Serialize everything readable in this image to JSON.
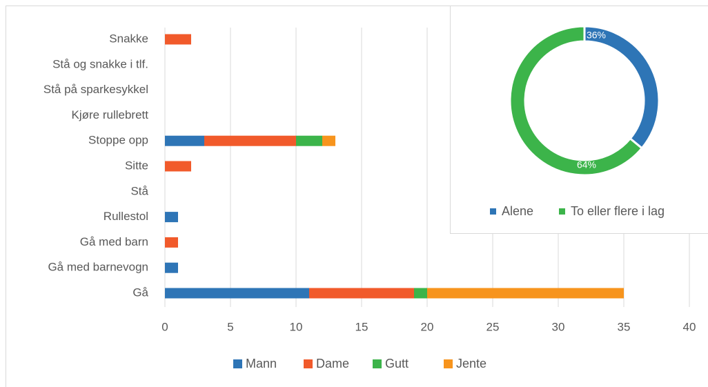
{
  "chart_data": [
    {
      "type": "bar",
      "orientation": "horizontal",
      "stacked": true,
      "categories": [
        "Snakke",
        "Stå og snakke i tlf.",
        "Stå på sparkesykkel",
        "Kjøre rullebrett",
        "Stoppe opp",
        "Sitte",
        "Stå",
        "Rullestol",
        "Gå med barn",
        "Gå med barnevogn",
        "Gå"
      ],
      "series": [
        {
          "name": "Mann",
          "color": "#2e75b6",
          "values": [
            0,
            0,
            0,
            0,
            3,
            0,
            0,
            1,
            0,
            1,
            11
          ]
        },
        {
          "name": "Dame",
          "color": "#f15a2b",
          "values": [
            2,
            0,
            0,
            0,
            7,
            2,
            0,
            0,
            1,
            0,
            8
          ]
        },
        {
          "name": "Gutt",
          "color": "#3cb44a",
          "values": [
            0,
            0,
            0,
            0,
            2,
            0,
            0,
            0,
            0,
            0,
            1
          ]
        },
        {
          "name": "Jente",
          "color": "#f7941d",
          "values": [
            0,
            0,
            0,
            0,
            1,
            0,
            0,
            0,
            0,
            0,
            15
          ]
        }
      ],
      "xlim": [
        0,
        40
      ],
      "xticks": [
        0,
        5,
        10,
        15,
        20,
        25,
        30,
        35,
        40
      ],
      "grid": true,
      "legend": "bottom"
    },
    {
      "type": "donut",
      "categories": [
        "Alene",
        "To eller flere i lag"
      ],
      "values": [
        36,
        64
      ],
      "value_labels": [
        "36%",
        "64%"
      ],
      "colors": [
        "#2e75b6",
        "#3cb44a"
      ],
      "legend": "bottom"
    }
  ]
}
